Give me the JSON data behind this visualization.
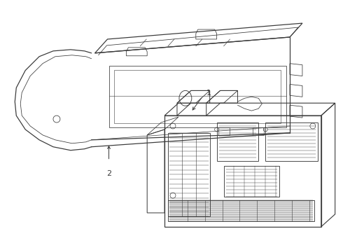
{
  "background_color": "#ffffff",
  "line_color": "#3a3a3a",
  "line_width": 0.8,
  "label1": "1",
  "label2": "2",
  "figsize": [
    4.9,
    3.6
  ],
  "dpi": 100
}
